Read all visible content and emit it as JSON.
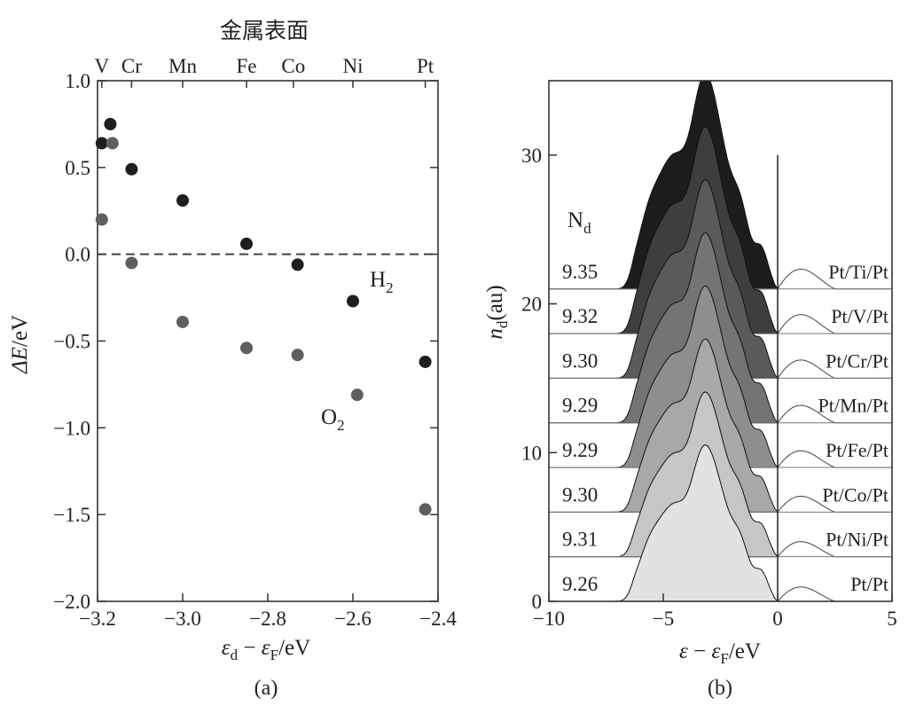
{
  "panel_a": {
    "caption": "(a)",
    "top_axis_title": "金属表面",
    "x_label_symbol1": "ε",
    "x_label_sub1": "d",
    "x_label_symbol2": "ε",
    "x_label_sub2": "F",
    "x_label_unit": "/eV",
    "y_label_symbol": "ΔE",
    "y_label_unit": "/eV",
    "h2_label": "H",
    "h2_sub": "2",
    "o2_label": "O",
    "o2_sub": "2"
  },
  "panel_b": {
    "caption": "(b)",
    "x_label_symbol1": "ε",
    "x_label_symbol2": "ε",
    "x_label_sub2": "F",
    "x_label_unit": "/eV",
    "y_label_symbol": "n",
    "y_label_sub": "d",
    "y_label_unit": "(au)",
    "nd_header": "N",
    "nd_header_sub": "d"
  },
  "chart_data": [
    {
      "type": "scatter",
      "title": "金属表面",
      "xlabel": "εd − εF /eV",
      "ylabel": "ΔE/eV",
      "xlim": [
        -3.2,
        -2.4
      ],
      "ylim": [
        -2.0,
        1.0
      ],
      "xticks": [
        "−3.2",
        "−3.0",
        "−2.8",
        "−2.6",
        "−2.4"
      ],
      "yticks": [
        "1.0",
        "0.5",
        "0.0",
        "−0.5",
        "−1.0",
        "−1.5",
        "−2.0"
      ],
      "reference_line_y": 0.0,
      "top_ticks": [
        {
          "label": "V",
          "x": -3.19
        },
        {
          "label": "Cr",
          "x": -3.12
        },
        {
          "label": "Mn",
          "x": -3.0
        },
        {
          "label": "Fe",
          "x": -2.85
        },
        {
          "label": "Co",
          "x": -2.74
        },
        {
          "label": "Ni",
          "x": -2.6
        },
        {
          "label": "Pt",
          "x": -2.43
        }
      ],
      "series": [
        {
          "name": "H2",
          "color": "#1e1e1e",
          "points": [
            {
              "x": -3.19,
              "y": 0.64
            },
            {
              "x": -3.17,
              "y": 0.75
            },
            {
              "x": -3.12,
              "y": 0.49
            },
            {
              "x": -3.0,
              "y": 0.31
            },
            {
              "x": -2.85,
              "y": 0.06
            },
            {
              "x": -2.73,
              "y": -0.06
            },
            {
              "x": -2.6,
              "y": -0.27
            },
            {
              "x": -2.43,
              "y": -0.62
            }
          ]
        },
        {
          "name": "O2",
          "color": "#5f5f5f",
          "points": [
            {
              "x": -3.19,
              "y": 0.2
            },
            {
              "x": -3.165,
              "y": 0.64
            },
            {
              "x": -3.12,
              "y": -0.05
            },
            {
              "x": -3.0,
              "y": -0.39
            },
            {
              "x": -2.85,
              "y": -0.54
            },
            {
              "x": -2.73,
              "y": -0.58
            },
            {
              "x": -2.59,
              "y": -0.81
            },
            {
              "x": -2.43,
              "y": -1.47
            }
          ]
        }
      ]
    },
    {
      "type": "area",
      "xlabel": "ε − εF /eV",
      "ylabel": "nd(au)",
      "xlim": [
        -10,
        5
      ],
      "ylim": [
        0,
        35
      ],
      "xticks": [
        "−10",
        "−5",
        "0",
        "5"
      ],
      "yticks": [
        "0",
        "10",
        "20",
        "30"
      ],
      "offset_step": 3,
      "series": [
        {
          "name": "Pt/Pt",
          "Nd": "9.26",
          "offset": 0,
          "color": "#e2e2e2"
        },
        {
          "name": "Pt/Ni/Pt",
          "Nd": "9.31",
          "offset": 3,
          "color": "#c6c6c6"
        },
        {
          "name": "Pt/Co/Pt",
          "Nd": "9.30",
          "offset": 6,
          "color": "#a8a8a8"
        },
        {
          "name": "Pt/Fe/Pt",
          "Nd": "9.29",
          "offset": 9,
          "color": "#8e8e8e"
        },
        {
          "name": "Pt/Mn/Pt",
          "Nd": "9.29",
          "offset": 12,
          "color": "#747474"
        },
        {
          "name": "Pt/Cr/Pt",
          "Nd": "9.30",
          "offset": 15,
          "color": "#5a5a5a"
        },
        {
          "name": "Pt/V/Pt",
          "Nd": "9.32",
          "offset": 18,
          "color": "#3e3e3e"
        },
        {
          "name": "Pt/Ti/Pt",
          "Nd": "9.35",
          "offset": 21,
          "color": "#1c1c1c"
        }
      ]
    }
  ]
}
